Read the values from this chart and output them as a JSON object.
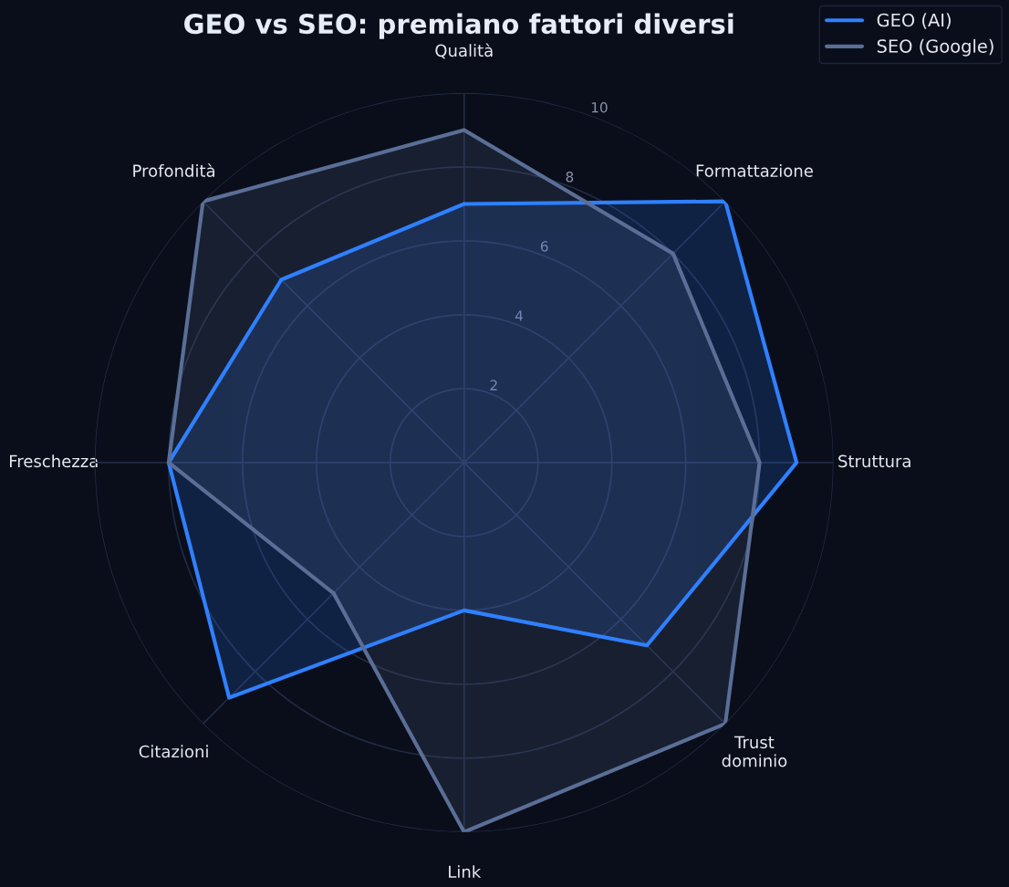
{
  "chart_data": {
    "type": "radar",
    "title": "GEO vs SEO: premiano fattori diversi",
    "categories": [
      "Qualità",
      "Formattazione",
      "Struttura",
      "Trust\ndominio",
      "Link",
      "Citazioni",
      "Freschezza",
      "Profondità"
    ],
    "series": [
      {
        "name": "GEO (AI)",
        "color": "#2f80ff",
        "values": [
          7,
          10,
          9,
          7,
          4,
          9,
          8,
          7
        ]
      },
      {
        "name": "SEO (Google)",
        "color": "#5a6e96",
        "values": [
          9,
          8,
          8,
          10,
          10,
          5,
          8,
          10
        ]
      }
    ],
    "ylim": [
      0,
      10
    ],
    "yticks": [
      2,
      4,
      6,
      8,
      10
    ],
    "grid": true,
    "legend": "top right"
  }
}
